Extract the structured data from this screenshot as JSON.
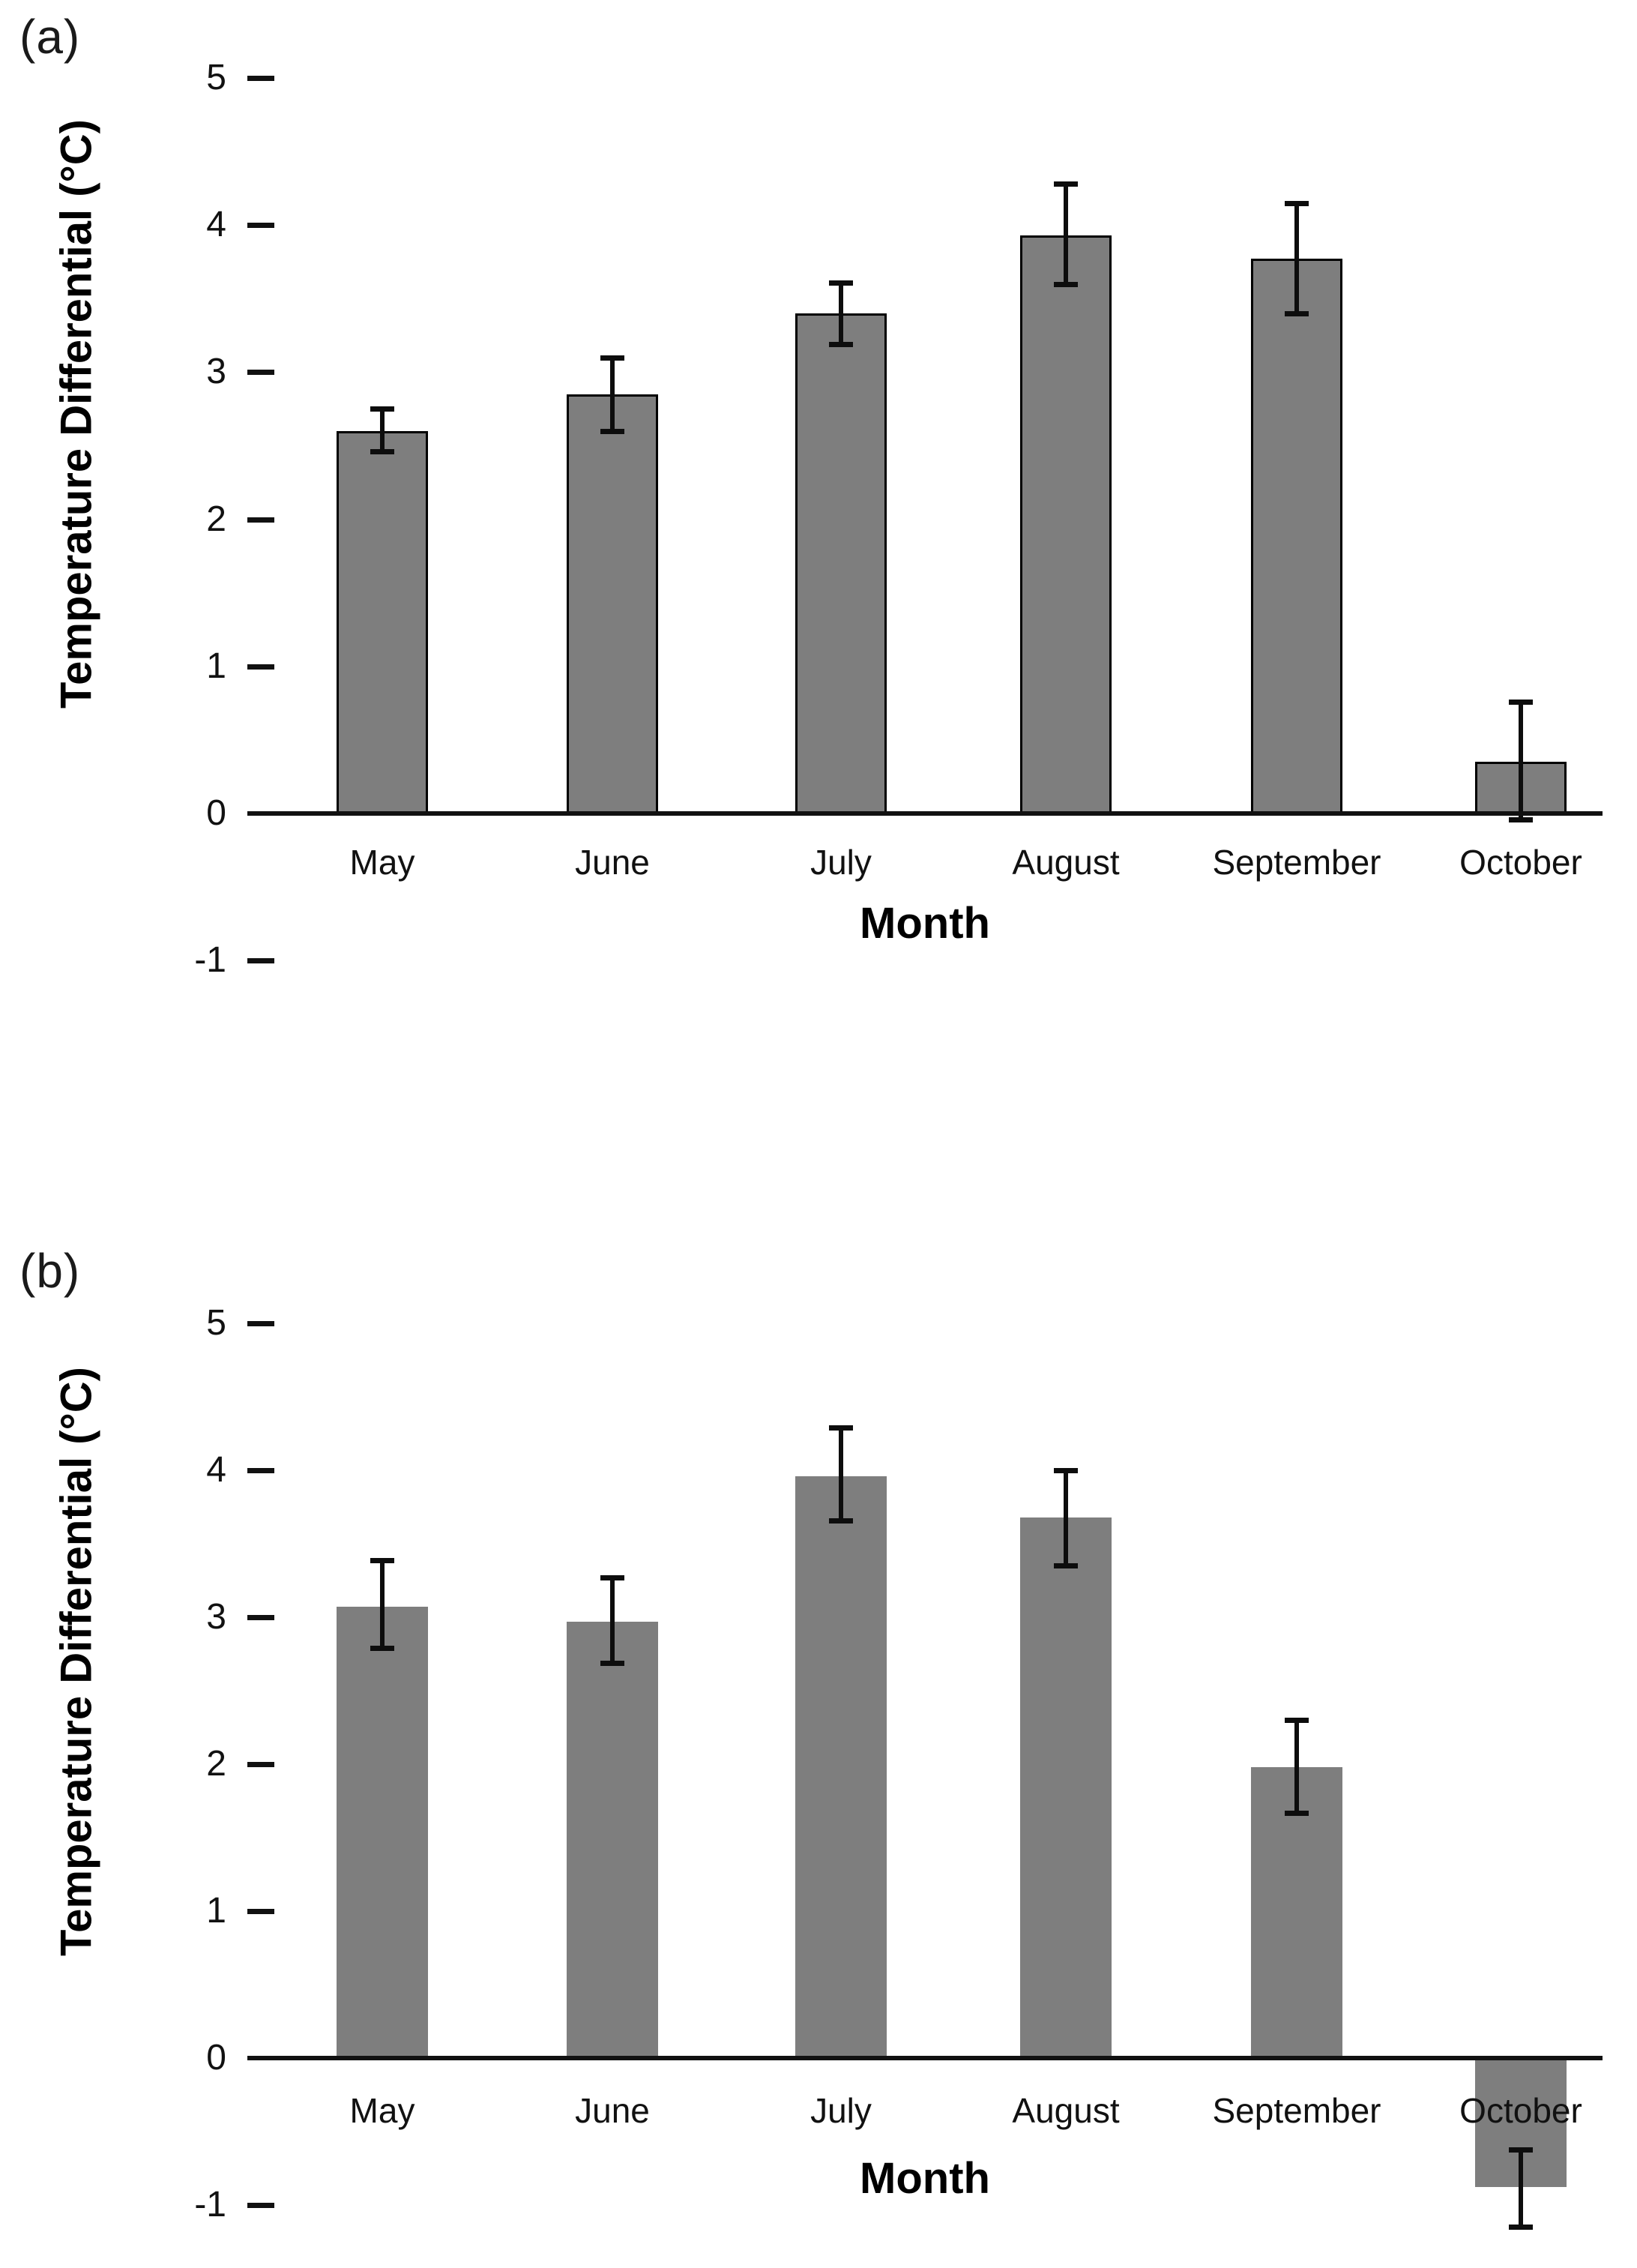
{
  "figure": {
    "background": "#ffffff",
    "text_color": "#000000"
  },
  "chart_data": [
    {
      "type": "bar",
      "panel_label": "(a)",
      "xlabel": "Month",
      "ylabel": "Temperature Differential (°C)",
      "categories": [
        "May",
        "June",
        "July",
        "August",
        "September",
        "October"
      ],
      "values": [
        2.6,
        2.85,
        3.4,
        3.93,
        3.77,
        0.35
      ],
      "error_low": [
        2.46,
        2.6,
        3.19,
        3.6,
        3.4,
        -0.04
      ],
      "error_high": [
        2.75,
        3.1,
        3.61,
        4.28,
        4.15,
        0.76
      ],
      "yticks": [
        5,
        4,
        3,
        2,
        1,
        0,
        -1
      ],
      "ylim": [
        -1.3,
        5.2
      ],
      "grid": false,
      "legend": null,
      "bar_color": "#7e7e7e",
      "bar_outline": "#000000"
    },
    {
      "type": "bar",
      "panel_label": "(b)",
      "xlabel": "Month",
      "ylabel": "Temperature Differential (°C)",
      "categories": [
        "May",
        "June",
        "July",
        "August",
        "September",
        "October"
      ],
      "values": [
        3.07,
        2.97,
        3.96,
        3.68,
        1.98,
        -0.88
      ],
      "error_low": [
        2.79,
        2.69,
        3.66,
        3.35,
        1.67,
        -1.15
      ],
      "error_high": [
        3.39,
        3.27,
        4.29,
        4.0,
        2.3,
        -0.62
      ],
      "yticks": [
        5,
        4,
        3,
        2,
        1,
        0,
        -1
      ],
      "ylim": [
        -1.3,
        5.2
      ],
      "grid": false,
      "legend": null,
      "bar_color": "#7e7e7e",
      "bar_outline": null
    }
  ]
}
